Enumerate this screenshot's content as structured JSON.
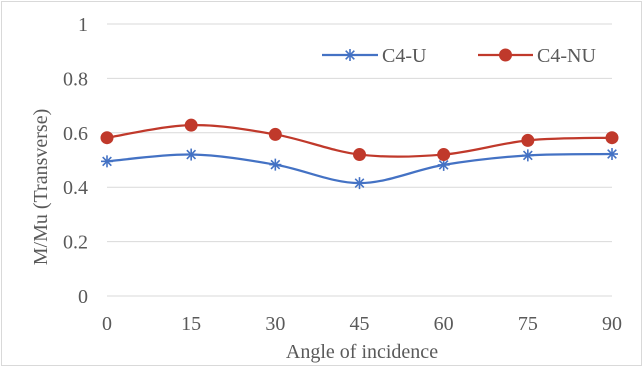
{
  "chart_data": {
    "type": "line",
    "title": "",
    "xlabel": "Angle of incidence",
    "ylabel": "M/Mu (Transverse)",
    "categories": [
      "0",
      "15",
      "30",
      "45",
      "60",
      "75",
      "90"
    ],
    "x": [
      0,
      15,
      30,
      45,
      60,
      75,
      90
    ],
    "yticks": [
      "0",
      "0.2",
      "0.4",
      "0.6",
      "0.8",
      "1"
    ],
    "ylim": [
      0,
      1
    ],
    "grid": "horizontal",
    "legend_position": "top-right",
    "smooth": true,
    "series": [
      {
        "name": "C4-U",
        "color": "#4472c4",
        "marker": "star",
        "values": [
          0.495,
          0.52,
          0.483,
          0.415,
          0.482,
          0.517,
          0.522
        ]
      },
      {
        "name": "C4-NU",
        "color": "#c0392b",
        "marker": "circle",
        "values": [
          0.582,
          0.628,
          0.594,
          0.52,
          0.52,
          0.572,
          0.582
        ]
      }
    ]
  }
}
